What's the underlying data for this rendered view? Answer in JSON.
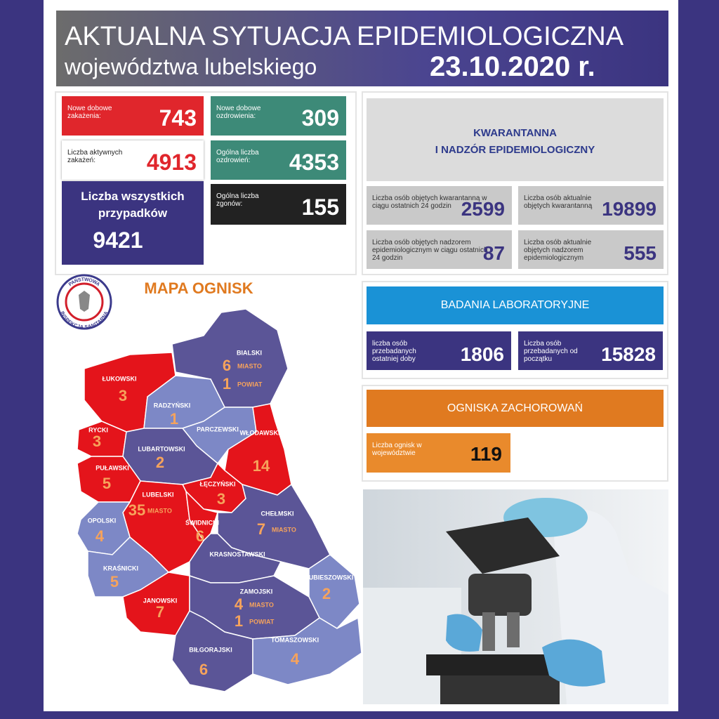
{
  "header": {
    "title": "AKTUALNA SYTUACJA EPIDEMIOLOGICZNA",
    "subtitle": "województwa lubelskiego",
    "date": "23.10.2020 r."
  },
  "stats": [
    {
      "label": "Nowe dobowe zakażenia:",
      "value": 743
    },
    {
      "label": "Liczba aktywnych zakażeń:",
      "value": 4913
    },
    {
      "label": "Liczba wszystkich przypadków",
      "value": 9421
    },
    {
      "label": "Nowe dobowe ozdrowienia:",
      "value": 309
    },
    {
      "label": "Ogólna liczba ozdrowień:",
      "value": 4353
    },
    {
      "label": "Ogólna liczba zgonów:",
      "value": 155
    }
  ],
  "quarantine": {
    "title": [
      "KWARANTANNA",
      "I NADZÓR EPIDEMIOLOGICZNY"
    ],
    "items": [
      {
        "label": "Liczba osób objętych kwarantanną w ciągu ostatnich 24 godzin",
        "value": 2599
      },
      {
        "label": "Liczba osób aktualnie objętych kwarantanną",
        "value": 19899
      },
      {
        "label": "Liczba osób objętych nadzorem epidemiologicznym w ciągu ostatnich 24 godzin",
        "value": 87
      },
      {
        "label": "Liczba osób aktualnie objętych nadzorem epidemiologicznym",
        "value": 555
      }
    ]
  },
  "lab": {
    "title": "BADANIA LABORATORYJNE",
    "items": [
      {
        "label": "liczba osób przebadanych ostatniej doby",
        "value": 1806
      },
      {
        "label": "Liczba osób przebadanych od początku",
        "value": 15828
      }
    ]
  },
  "outbreaks": {
    "title": "OGNISKA ZACHOROWAŃ",
    "label": "Liczba ognisk w województwie",
    "value": 119
  },
  "map": {
    "title": "MAPA OGNISK",
    "logo": [
      "PAŃSTWOWA",
      "INSPEKCJA SANITARNA"
    ],
    "districts": [
      {
        "name": "BIALSKI",
        "color": "#5b5597",
        "counts": [
          {
            "value": 6,
            "note": "MIASTO"
          },
          {
            "value": 1,
            "note": "POWIAT"
          }
        ]
      },
      {
        "name": "ŁUKOWSKI",
        "color": "#e4141b",
        "counts": [
          {
            "value": 3
          }
        ]
      },
      {
        "name": "RADZYŃSKI",
        "color": "#7d88c6",
        "counts": [
          {
            "value": 1
          }
        ]
      },
      {
        "name": "PARCZEWSKI",
        "color": "#7d88c6",
        "counts": []
      },
      {
        "name": "WŁODAWSKI",
        "color": "#e4141b",
        "counts": [
          {
            "value": 14
          }
        ]
      },
      {
        "name": "RYCKI",
        "color": "#e4141b",
        "counts": [
          {
            "value": 3
          }
        ]
      },
      {
        "name": "LUBARTOWSKI",
        "color": "#5b5597",
        "counts": [
          {
            "value": 2
          }
        ]
      },
      {
        "name": "PUŁAWSKI",
        "color": "#e4141b",
        "counts": [
          {
            "value": 5
          }
        ]
      },
      {
        "name": "ŁĘCZYŃSKI",
        "color": "#e4141b",
        "counts": [
          {
            "value": 3
          }
        ]
      },
      {
        "name": "LUBELSKI",
        "color": "#e4141b",
        "counts": [
          {
            "value": 35,
            "note": "MIASTO"
          }
        ]
      },
      {
        "name": "ŚWIDNICKI",
        "color": "#e4141b",
        "counts": [
          {
            "value": 6
          }
        ]
      },
      {
        "name": "CHEŁMSKI",
        "color": "#5b5597",
        "counts": [
          {
            "value": 7,
            "note": "MIASTO"
          }
        ]
      },
      {
        "name": "OPOLSKI",
        "color": "#7d88c6",
        "counts": [
          {
            "value": 4
          }
        ]
      },
      {
        "name": "KRASNOSTAWSKI",
        "color": "#5b5597",
        "counts": []
      },
      {
        "name": "KRAŚNICKI",
        "color": "#7d88c6",
        "counts": [
          {
            "value": 5
          }
        ]
      },
      {
        "name": "JANOWSKI",
        "color": "#e4141b",
        "counts": [
          {
            "value": 7
          }
        ]
      },
      {
        "name": "HRUBIESZOWSKI",
        "color": "#7d88c6",
        "counts": [
          {
            "value": 2
          }
        ]
      },
      {
        "name": "ZAMOJSKI",
        "color": "#5b5597",
        "counts": [
          {
            "value": 4,
            "note": "MIASTO"
          },
          {
            "value": 1,
            "note": "POWIAT"
          }
        ]
      },
      {
        "name": "BIŁGORAJSKI",
        "color": "#5b5597",
        "counts": [
          {
            "value": 6
          }
        ]
      },
      {
        "name": "TOMASZOWSKI",
        "color": "#7d88c6",
        "counts": [
          {
            "value": 4
          }
        ]
      }
    ]
  }
}
